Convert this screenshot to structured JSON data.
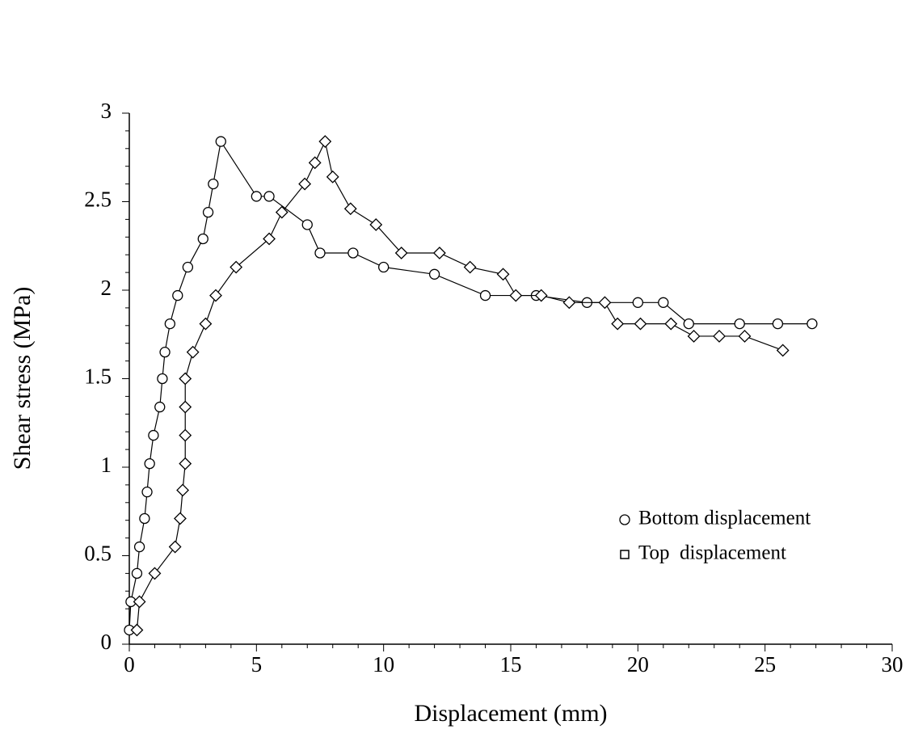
{
  "chart_data": {
    "type": "line",
    "x_label": "Displacement (mm)",
    "y_label": "Shear stress (MPa)",
    "xlim": [
      0,
      30
    ],
    "xticks": [
      0,
      5,
      10,
      15,
      20,
      25,
      30
    ],
    "ylim": [
      0,
      3
    ],
    "yticks": [
      0,
      0.5,
      1,
      1.5,
      2,
      2.5,
      3
    ],
    "legend": "bottom-right",
    "series": [
      {
        "name": "Bottom displacement",
        "color": "#000000",
        "marker": "circle",
        "x": [
          0,
          0.06,
          0.3,
          0.4,
          0.6,
          0.7,
          0.8,
          0.95,
          1.2,
          1.3,
          1.4,
          1.6,
          1.9,
          2.3,
          2.9,
          3.1,
          3.3,
          3.6,
          5.0,
          5.5,
          7.0,
          7.5,
          8.8,
          10.0,
          12.0,
          14.0,
          16.0,
          18.0,
          20.0,
          21.0,
          22.0,
          24.0,
          25.5,
          26.85
        ],
        "values": [
          0.08,
          0.24,
          0.4,
          0.55,
          0.71,
          0.86,
          1.02,
          1.18,
          1.34,
          1.5,
          1.65,
          1.81,
          1.97,
          2.13,
          2.29,
          2.44,
          2.6,
          2.84,
          2.53,
          2.53,
          2.37,
          2.21,
          2.21,
          2.13,
          2.09,
          1.97,
          1.97,
          1.93,
          1.93,
          1.93,
          1.81,
          1.81,
          1.81,
          1.81
        ]
      },
      {
        "name": "Top  displacement",
        "color": "#000000",
        "marker": "diamond",
        "x": [
          0.3,
          0.4,
          1.0,
          1.8,
          2.0,
          2.1,
          2.2,
          2.2,
          2.2,
          2.2,
          2.5,
          3.0,
          3.4,
          4.2,
          5.5,
          6.0,
          6.9,
          7.3,
          7.7,
          8.0,
          8.7,
          9.7,
          10.7,
          12.2,
          13.4,
          14.7,
          15.2,
          16.2,
          17.3,
          18.7,
          19.2,
          20.1,
          21.3,
          22.2,
          23.2,
          24.2,
          25.7
        ],
        "values": [
          0.08,
          0.24,
          0.4,
          0.55,
          0.71,
          0.87,
          1.02,
          1.18,
          1.34,
          1.5,
          1.65,
          1.81,
          1.97,
          2.13,
          2.29,
          2.44,
          2.6,
          2.72,
          2.84,
          2.64,
          2.46,
          2.37,
          2.21,
          2.21,
          2.13,
          2.09,
          1.97,
          1.97,
          1.93,
          1.93,
          1.81,
          1.81,
          1.81,
          1.74,
          1.74,
          1.74,
          1.66
        ]
      }
    ]
  }
}
